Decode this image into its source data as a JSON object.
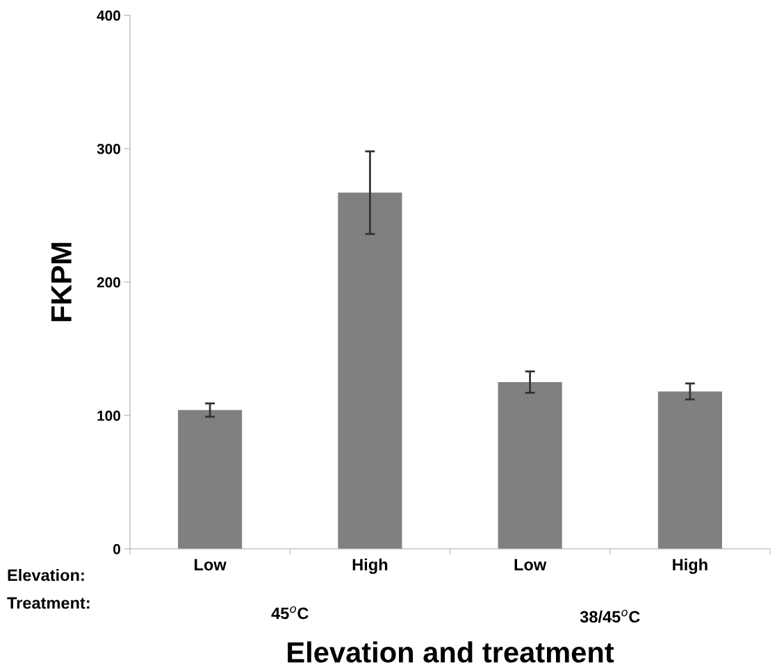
{
  "chart_data": {
    "type": "bar",
    "xlabel": "Elevation and treatment",
    "ylabel": "FKPM",
    "categories": [
      "Low",
      "High",
      "Low",
      "High"
    ],
    "values": [
      104,
      267,
      125,
      118
    ],
    "errors": [
      5,
      31,
      8,
      6
    ],
    "color": "#808080",
    "ylim": [
      0,
      400
    ],
    "yticks": [
      0,
      100,
      200,
      300,
      400
    ],
    "grid": false,
    "legend": false,
    "annotations": [
      "Elevation:",
      "Treatment:",
      "45$^{o}$C",
      "38/45$^{o}$C"
    ]
  }
}
